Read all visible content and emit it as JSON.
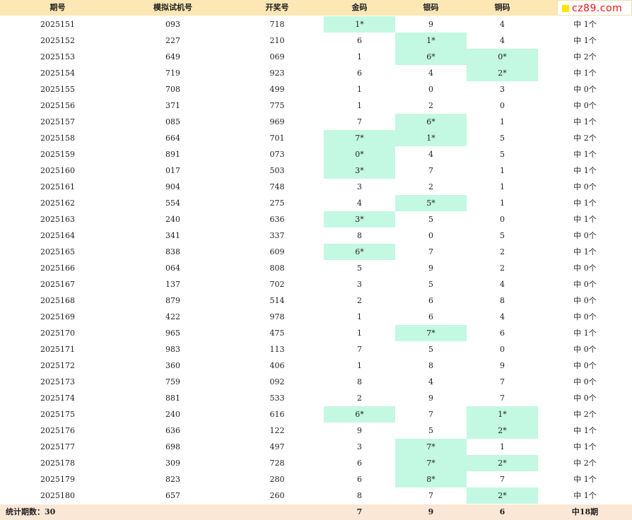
{
  "header": {
    "cols": [
      "期号",
      "模拟试机号",
      "开奖号",
      "金码",
      "银码",
      "铜码",
      ""
    ]
  },
  "logo": {
    "text": "cz89.com"
  },
  "rows": [
    {
      "cells": [
        "2025151",
        "093",
        "718",
        "1*",
        "9",
        "4",
        "中 1个"
      ],
      "hits": [
        true,
        false,
        false
      ]
    },
    {
      "cells": [
        "2025152",
        "227",
        "210",
        "6",
        "1*",
        "4",
        "中 1个"
      ],
      "hits": [
        false,
        true,
        false
      ]
    },
    {
      "cells": [
        "2025153",
        "649",
        "069",
        "1",
        "6*",
        "0*",
        "中 2个"
      ],
      "hits": [
        false,
        true,
        true
      ]
    },
    {
      "cells": [
        "2025154",
        "719",
        "923",
        "6",
        "4",
        "2*",
        "中 1个"
      ],
      "hits": [
        false,
        false,
        true
      ]
    },
    {
      "cells": [
        "2025155",
        "708",
        "499",
        "1",
        "0",
        "3",
        "中 0个"
      ],
      "hits": [
        false,
        false,
        false
      ]
    },
    {
      "cells": [
        "2025156",
        "371",
        "775",
        "1",
        "2",
        "0",
        "中 0个"
      ],
      "hits": [
        false,
        false,
        false
      ]
    },
    {
      "cells": [
        "2025157",
        "085",
        "969",
        "7",
        "6*",
        "1",
        "中 1个"
      ],
      "hits": [
        false,
        true,
        false
      ]
    },
    {
      "cells": [
        "2025158",
        "664",
        "701",
        "7*",
        "1*",
        "5",
        "中 2个"
      ],
      "hits": [
        true,
        true,
        false
      ]
    },
    {
      "cells": [
        "2025159",
        "891",
        "073",
        "0*",
        "4",
        "5",
        "中 1个"
      ],
      "hits": [
        true,
        false,
        false
      ]
    },
    {
      "cells": [
        "2025160",
        "017",
        "503",
        "3*",
        "7",
        "1",
        "中 1个"
      ],
      "hits": [
        true,
        false,
        false
      ]
    },
    {
      "cells": [
        "2025161",
        "904",
        "748",
        "3",
        "2",
        "1",
        "中 0个"
      ],
      "hits": [
        false,
        false,
        false
      ]
    },
    {
      "cells": [
        "2025162",
        "554",
        "275",
        "4",
        "5*",
        "1",
        "中 1个"
      ],
      "hits": [
        false,
        true,
        false
      ]
    },
    {
      "cells": [
        "2025163",
        "240",
        "636",
        "3*",
        "5",
        "0",
        "中 1个"
      ],
      "hits": [
        true,
        false,
        false
      ]
    },
    {
      "cells": [
        "2025164",
        "341",
        "337",
        "8",
        "0",
        "5",
        "中 0个"
      ],
      "hits": [
        false,
        false,
        false
      ]
    },
    {
      "cells": [
        "2025165",
        "838",
        "609",
        "6*",
        "7",
        "2",
        "中 1个"
      ],
      "hits": [
        true,
        false,
        false
      ]
    },
    {
      "cells": [
        "2025166",
        "064",
        "808",
        "5",
        "9",
        "2",
        "中 0个"
      ],
      "hits": [
        false,
        false,
        false
      ]
    },
    {
      "cells": [
        "2025167",
        "137",
        "702",
        "3",
        "5",
        "4",
        "中 0个"
      ],
      "hits": [
        false,
        false,
        false
      ]
    },
    {
      "cells": [
        "2025168",
        "879",
        "514",
        "2",
        "6",
        "8",
        "中 0个"
      ],
      "hits": [
        false,
        false,
        false
      ]
    },
    {
      "cells": [
        "2025169",
        "422",
        "978",
        "1",
        "6",
        "4",
        "中 0个"
      ],
      "hits": [
        false,
        false,
        false
      ]
    },
    {
      "cells": [
        "2025170",
        "965",
        "475",
        "1",
        "7*",
        "6",
        "中 1个"
      ],
      "hits": [
        false,
        true,
        false
      ]
    },
    {
      "cells": [
        "2025171",
        "983",
        "113",
        "7",
        "5",
        "0",
        "中 0个"
      ],
      "hits": [
        false,
        false,
        false
      ]
    },
    {
      "cells": [
        "2025172",
        "360",
        "406",
        "1",
        "8",
        "9",
        "中 0个"
      ],
      "hits": [
        false,
        false,
        false
      ]
    },
    {
      "cells": [
        "2025173",
        "759",
        "092",
        "8",
        "4",
        "7",
        "中 0个"
      ],
      "hits": [
        false,
        false,
        false
      ]
    },
    {
      "cells": [
        "2025174",
        "881",
        "533",
        "2",
        "9",
        "7",
        "中 0个"
      ],
      "hits": [
        false,
        false,
        false
      ]
    },
    {
      "cells": [
        "2025175",
        "240",
        "616",
        "6*",
        "7",
        "1*",
        "中 2个"
      ],
      "hits": [
        true,
        false,
        true
      ]
    },
    {
      "cells": [
        "2025176",
        "636",
        "122",
        "9",
        "5",
        "2*",
        "中 1个"
      ],
      "hits": [
        false,
        false,
        true
      ]
    },
    {
      "cells": [
        "2025177",
        "698",
        "497",
        "3",
        "7*",
        "1",
        "中 1个"
      ],
      "hits": [
        false,
        true,
        false
      ]
    },
    {
      "cells": [
        "2025178",
        "309",
        "728",
        "6",
        "7*",
        "2*",
        "中 2个"
      ],
      "hits": [
        false,
        true,
        true
      ]
    },
    {
      "cells": [
        "2025179",
        "823",
        "280",
        "6",
        "8*",
        "7",
        "中 1个"
      ],
      "hits": [
        false,
        true,
        false
      ]
    },
    {
      "cells": [
        "2025180",
        "657",
        "260",
        "8",
        "7",
        "2*",
        "中 1个"
      ],
      "hits": [
        false,
        false,
        true
      ]
    }
  ],
  "footer": {
    "cells": [
      "统计期数：30",
      "",
      "",
      "7",
      "9",
      "6",
      "中18期"
    ]
  },
  "colors": {
    "header_bg": "#fde7b4",
    "hit_bg": "#c3f8e2",
    "footer_bg": "#fbe7d6",
    "logo_text": "#ee1111",
    "logo_square": "#ffe600"
  }
}
